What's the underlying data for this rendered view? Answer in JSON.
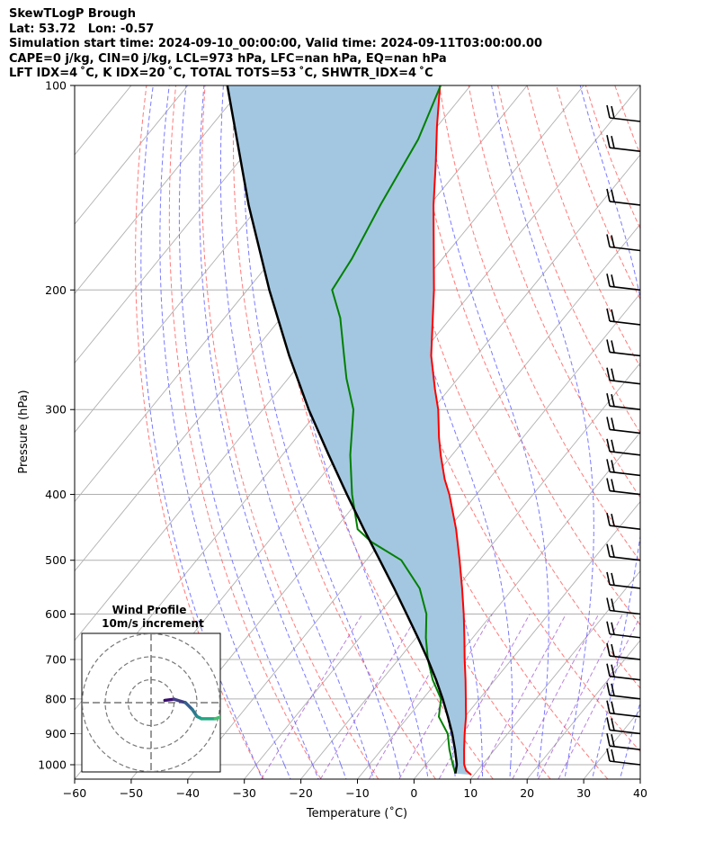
{
  "header": {
    "title": "SkewTLogP Brough",
    "location": "Lat: 53.72   Lon: -0.57",
    "times": "Simulation start time: 2024-09-10_00:00:00, Valid time: 2024-09-11T03:00:00.00",
    "indices_1": "CAPE=0 j/kg, CIN=0 j/kg, LCL=973 hPa, LFC=nan hPa, EQ=nan hPa",
    "indices_2": "LFT IDX=4 ˚C, K IDX=20 ˚C, TOTAL TOTS=53 ˚C, SHWTR_IDX=4 ˚C"
  },
  "colors": {
    "temperature": "#ff0000",
    "dewpoint": "#008000",
    "parcel": "#000000",
    "cin_fill": "#a3c7e0",
    "dry_adiabat": "#ff6b6b",
    "moist_adiabat": "#6b6bff",
    "mixing_ratio": "#9b4bd0",
    "isotherm": "#b0b0b0"
  },
  "chart_data": {
    "type": "line",
    "subtype": "skew-t log-p",
    "xlabel": "Temperature (˚C)",
    "ylabel": "Pressure (hPa)",
    "xlim": [
      -60,
      40
    ],
    "ylim": [
      1050,
      100
    ],
    "y_scale": "log",
    "x_ticks": [
      "−60",
      "−50",
      "−40",
      "−30",
      "−20",
      "−10",
      "0",
      "10",
      "20",
      "30",
      "40"
    ],
    "y_ticks": [
      "100",
      "200",
      "300",
      "400",
      "500",
      "600",
      "700",
      "800",
      "900",
      "1000"
    ],
    "grid": true,
    "series": [
      {
        "name": "Temperature",
        "points": [
          [
            1035,
            9.5
          ],
          [
            1020,
            8.0
          ],
          [
            1000,
            6.8
          ],
          [
            950,
            4.6
          ],
          [
            900,
            2.4
          ],
          [
            850,
            0.2
          ],
          [
            800,
            -2.4
          ],
          [
            750,
            -5.2
          ],
          [
            700,
            -8.3
          ],
          [
            650,
            -11.5
          ],
          [
            600,
            -15.0
          ],
          [
            550,
            -19.0
          ],
          [
            500,
            -23.5
          ],
          [
            450,
            -28.6
          ],
          [
            400,
            -34.8
          ],
          [
            380,
            -37.8
          ],
          [
            350,
            -42.0
          ],
          [
            330,
            -44.8
          ],
          [
            300,
            -49.0
          ],
          [
            280,
            -52.5
          ],
          [
            250,
            -58.0
          ],
          [
            200,
            -67.0
          ],
          [
            180,
            -71.5
          ],
          [
            150,
            -79.3
          ],
          [
            130,
            -85.0
          ],
          [
            115,
            -90.0
          ],
          [
            100,
            -95.4
          ]
        ]
      },
      {
        "name": "Dewpoint",
        "points": [
          [
            1030,
            6.5
          ],
          [
            1000,
            4.8
          ],
          [
            950,
            2.0
          ],
          [
            900,
            -0.6
          ],
          [
            850,
            -4.6
          ],
          [
            800,
            -6.8
          ],
          [
            750,
            -11.0
          ],
          [
            700,
            -14.8
          ],
          [
            650,
            -18.3
          ],
          [
            600,
            -21.6
          ],
          [
            550,
            -26.5
          ],
          [
            500,
            -33.8
          ],
          [
            470,
            -41.7
          ],
          [
            450,
            -46.0
          ],
          [
            400,
            -52.0
          ],
          [
            350,
            -58.0
          ],
          [
            300,
            -64.0
          ],
          [
            270,
            -69.7
          ],
          [
            250,
            -73.4
          ],
          [
            220,
            -79.5
          ],
          [
            200,
            -85.0
          ],
          [
            180,
            -86.0
          ],
          [
            150,
            -88.7
          ],
          [
            120,
            -91.5
          ],
          [
            100,
            -95.3
          ]
        ]
      },
      {
        "name": "Parcel",
        "points": [
          [
            1030,
            6.5
          ],
          [
            1000,
            5.5
          ],
          [
            950,
            3.0
          ],
          [
            900,
            0.2
          ],
          [
            850,
            -3.0
          ],
          [
            800,
            -6.5
          ],
          [
            750,
            -10.4
          ],
          [
            700,
            -14.8
          ],
          [
            650,
            -19.7
          ],
          [
            600,
            -25.1
          ],
          [
            550,
            -31.0
          ],
          [
            500,
            -37.6
          ],
          [
            450,
            -44.9
          ],
          [
            400,
            -52.9
          ],
          [
            350,
            -61.8
          ],
          [
            300,
            -71.9
          ],
          [
            250,
            -83.1
          ],
          [
            200,
            -96.1
          ],
          [
            150,
            -112.0
          ],
          [
            100,
            -133.0
          ]
        ]
      }
    ],
    "wind_barbs_pressure": [
      100,
      125,
      150,
      175,
      200,
      225,
      250,
      275,
      300,
      325,
      350,
      375,
      400,
      450,
      500,
      550,
      600,
      650,
      700,
      750,
      800,
      850,
      900,
      950,
      1000
    ],
    "hodograph": {
      "title": "Wind Profile",
      "subtitle": "10m/s increment",
      "rings": [
        1,
        2,
        3
      ],
      "points": [
        [
          0.6,
          0.1
        ],
        [
          1.0,
          0.15
        ],
        [
          1.5,
          0.0
        ],
        [
          1.8,
          -0.3
        ],
        [
          2.0,
          -0.6
        ],
        [
          2.2,
          -0.7
        ],
        [
          2.8,
          -0.7
        ],
        [
          3.4,
          -0.5
        ],
        [
          3.9,
          -0.6
        ],
        [
          4.3,
          -0.8
        ],
        [
          4.7,
          -1.0
        ]
      ],
      "colormap": [
        "#3b0f70",
        "#413d84",
        "#355f8d",
        "#2a788e",
        "#21918c",
        "#22a884",
        "#44bf70",
        "#7ad151",
        "#bddf26",
        "#fde725"
      ]
    }
  }
}
